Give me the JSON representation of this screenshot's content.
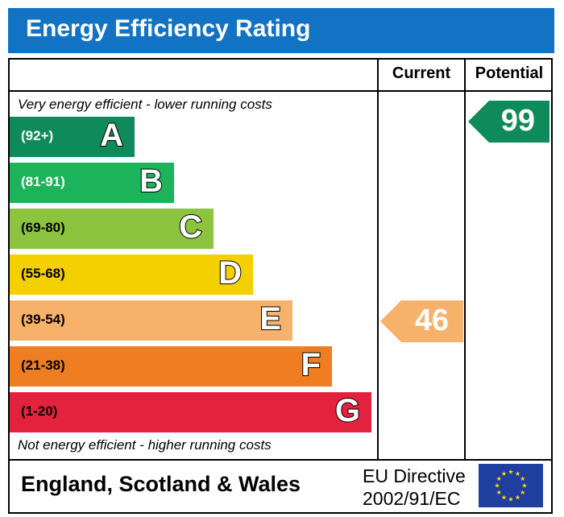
{
  "title": "Energy Efficiency Rating",
  "columns": {
    "current": "Current",
    "potential": "Potential"
  },
  "notes": {
    "top": "Very energy efficient - lower running costs",
    "bottom": "Not energy efficient - higher running costs"
  },
  "footer": {
    "region": "England, Scotland & Wales",
    "directive_line1": "EU Directive",
    "directive_line2": "2002/91/EC"
  },
  "icons": {
    "eu_flag": "eu-flag-icon"
  },
  "chart_data": {
    "type": "bar",
    "title": "Energy Efficiency Rating",
    "bands": [
      {
        "letter": "A",
        "range": "(92+)",
        "color": "#0f8a5b",
        "range_color": "#ffffff"
      },
      {
        "letter": "B",
        "range": "(81-91)",
        "color": "#1cb35a",
        "range_color": "#ffffff"
      },
      {
        "letter": "C",
        "range": "(69-80)",
        "color": "#8cc43f",
        "range_color": "#000000"
      },
      {
        "letter": "D",
        "range": "(55-68)",
        "color": "#f5d000",
        "range_color": "#000000"
      },
      {
        "letter": "E",
        "range": "(39-54)",
        "color": "#f6b26b",
        "range_color": "#000000"
      },
      {
        "letter": "F",
        "range": "(21-38)",
        "color": "#ef7d22",
        "range_color": "#000000"
      },
      {
        "letter": "G",
        "range": "(1-20)",
        "color": "#e3233e",
        "range_color": "#000000"
      }
    ],
    "current": {
      "value": 46,
      "band": "E",
      "color": "#f6b26b"
    },
    "potential": {
      "value": 99,
      "band": "A",
      "color": "#0f8a5b"
    }
  }
}
